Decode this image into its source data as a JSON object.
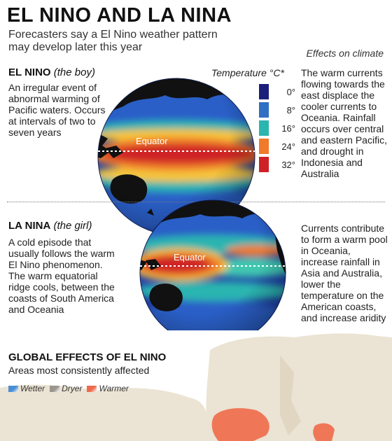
{
  "title": "EL NINO AND LA NINA",
  "subtitle": "Forecasters say a El Nino weather pattern may develop later this year",
  "effects_heading": "Effects on climate",
  "el_nino": {
    "name": "EL NINO",
    "nickname": "(the boy)",
    "description": "An irregular event of abnormal warming of Pacific waters. Occurs at intervals of two to seven years",
    "effects": "The warm currents flowing towards the east displace the cooler currents to Oceania. Rainfall occurs over central and eastern Pacific, and drought in Indonesia and Australia",
    "equator_label": "Equator"
  },
  "la_nina": {
    "name": "LA NINA",
    "nickname": "(the girl)",
    "description": "A cold episode that usually follows the warm El Nino phenomenon. The warm equatorial ridge cools, between the coasts of South America and Oceania",
    "effects": "Currents contribute to form a warm pool in Oceania, increase rainfall in Asia and Australia, lower the temperature on the American coasts, and increase aridity",
    "equator_label": "Equator"
  },
  "temperature_legend": {
    "title": "Temperature °C*",
    "items": [
      {
        "label": "0°",
        "color": "#1b1f7a"
      },
      {
        "label": "8°",
        "color": "#2f6fc4"
      },
      {
        "label": "16°",
        "color": "#2bb5b0"
      },
      {
        "label": "24°",
        "color": "#f07a2a"
      },
      {
        "label": "32°",
        "color": "#cf2027"
      }
    ]
  },
  "global_effects": {
    "title": "GLOBAL EFFECTS OF EL NINO",
    "subtitle": "Areas most consistently affected",
    "legend": [
      {
        "label": "Wetter",
        "color": "#4a8fd6"
      },
      {
        "label": "Dryer",
        "color": "#9a958d"
      },
      {
        "label": "Warmer",
        "color": "#ef6a4a"
      }
    ]
  }
}
